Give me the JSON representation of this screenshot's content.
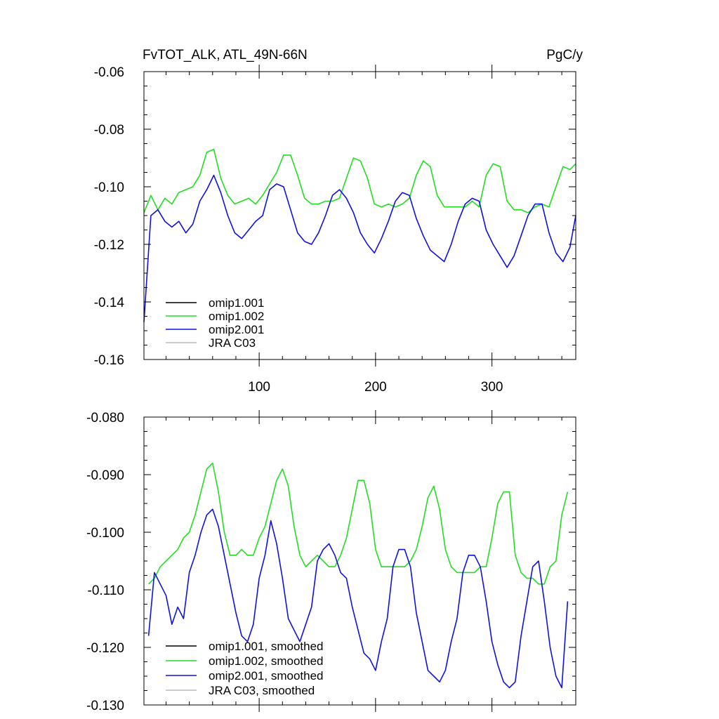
{
  "header": {
    "left_title": "FvTOT_ALK, ATL_49N-66N",
    "right_title": "PgC/y"
  },
  "colors": {
    "omip1_001": "#000000",
    "omip1_002": "#22dd22",
    "omip2_001": "#1111dd",
    "jra_c03": "#bbbbbb"
  },
  "chart_data": [
    {
      "type": "line",
      "title": "",
      "xlabel": "",
      "ylabel": "",
      "xlim": [
        1,
        372
      ],
      "ylim": [
        -0.16,
        -0.06
      ],
      "x_ticks": [
        100,
        200,
        300
      ],
      "x_tick_labels": [
        "100",
        "200",
        "300"
      ],
      "y_ticks": [
        -0.06,
        -0.08,
        -0.1,
        -0.12,
        -0.14,
        -0.16
      ],
      "y_tick_labels": [
        "-0.06",
        "-0.08",
        "-0.10",
        "-0.12",
        "-0.14",
        "-0.16"
      ],
      "grid": false,
      "legend_placement": "bottom-left",
      "legend": [
        {
          "name": "omip1.001",
          "color": "#000000"
        },
        {
          "name": "omip1.002",
          "color": "#22dd22"
        },
        {
          "name": "omip2.001",
          "color": "#1111dd"
        },
        {
          "name": "JRA C03",
          "color": "#bbbbbb"
        }
      ],
      "series": [
        {
          "name": "omip1.002",
          "color": "#22dd22",
          "x": [
            1,
            7,
            13,
            19,
            25,
            31,
            37,
            43,
            49,
            55,
            61,
            67,
            73,
            79,
            85,
            91,
            97,
            103,
            109,
            115,
            121,
            127,
            133,
            139,
            145,
            151,
            157,
            163,
            169,
            175,
            181,
            187,
            193,
            199,
            205,
            211,
            217,
            223,
            229,
            235,
            241,
            247,
            253,
            259,
            265,
            271,
            277,
            283,
            289,
            295,
            301,
            307,
            313,
            319,
            325,
            331,
            337,
            343,
            349,
            355,
            361,
            367,
            372
          ],
          "y": [
            -0.109,
            -0.103,
            -0.108,
            -0.104,
            -0.106,
            -0.102,
            -0.101,
            -0.1,
            -0.096,
            -0.088,
            -0.087,
            -0.097,
            -0.103,
            -0.106,
            -0.105,
            -0.104,
            -0.106,
            -0.103,
            -0.099,
            -0.095,
            -0.089,
            -0.089,
            -0.096,
            -0.104,
            -0.106,
            -0.106,
            -0.105,
            -0.105,
            -0.104,
            -0.097,
            -0.09,
            -0.091,
            -0.097,
            -0.106,
            -0.107,
            -0.106,
            -0.107,
            -0.106,
            -0.104,
            -0.096,
            -0.091,
            -0.093,
            -0.103,
            -0.107,
            -0.107,
            -0.107,
            -0.107,
            -0.105,
            -0.107,
            -0.096,
            -0.092,
            -0.093,
            -0.105,
            -0.108,
            -0.108,
            -0.109,
            -0.107,
            -0.106,
            -0.107,
            -0.1,
            -0.093,
            -0.094,
            -0.092
          ]
        },
        {
          "name": "omip2.001",
          "color": "#1111dd",
          "x": [
            1,
            7,
            13,
            19,
            25,
            31,
            37,
            43,
            49,
            55,
            61,
            67,
            73,
            79,
            85,
            91,
            97,
            103,
            109,
            115,
            121,
            127,
            133,
            139,
            145,
            151,
            157,
            163,
            169,
            175,
            181,
            187,
            193,
            199,
            205,
            211,
            217,
            223,
            229,
            235,
            241,
            247,
            253,
            259,
            265,
            271,
            277,
            283,
            289,
            295,
            301,
            307,
            313,
            319,
            325,
            331,
            337,
            343,
            349,
            355,
            361,
            367,
            372
          ],
          "y": [
            -0.147,
            -0.11,
            -0.108,
            -0.112,
            -0.114,
            -0.112,
            -0.116,
            -0.113,
            -0.105,
            -0.101,
            -0.096,
            -0.102,
            -0.11,
            -0.116,
            -0.118,
            -0.115,
            -0.112,
            -0.11,
            -0.101,
            -0.099,
            -0.1,
            -0.108,
            -0.116,
            -0.119,
            -0.12,
            -0.116,
            -0.11,
            -0.103,
            -0.101,
            -0.104,
            -0.109,
            -0.116,
            -0.12,
            -0.123,
            -0.118,
            -0.112,
            -0.105,
            -0.102,
            -0.103,
            -0.111,
            -0.117,
            -0.122,
            -0.124,
            -0.126,
            -0.12,
            -0.112,
            -0.106,
            -0.104,
            -0.105,
            -0.115,
            -0.12,
            -0.124,
            -0.128,
            -0.124,
            -0.117,
            -0.11,
            -0.106,
            -0.106,
            -0.116,
            -0.123,
            -0.126,
            -0.121,
            -0.11
          ]
        }
      ]
    },
    {
      "type": "line",
      "title": "",
      "xlabel": "",
      "ylabel": "",
      "xlim": [
        1,
        372
      ],
      "ylim": [
        -0.13,
        -0.08
      ],
      "x_ticks": [
        100,
        200,
        300
      ],
      "x_tick_labels": [
        "",
        "",
        ""
      ],
      "y_ticks": [
        -0.08,
        -0.09,
        -0.1,
        -0.11,
        -0.12,
        -0.13
      ],
      "y_tick_labels": [
        "-0.080",
        "-0.090",
        "-0.100",
        "-0.110",
        "-0.120",
        "-0.130"
      ],
      "grid": false,
      "legend_placement": "bottom-left",
      "legend": [
        {
          "name": "omip1.001, smoothed",
          "color": "#000000"
        },
        {
          "name": "omip1.002, smoothed",
          "color": "#22dd22"
        },
        {
          "name": "omip2.001, smoothed",
          "color": "#1111dd"
        },
        {
          "name": "JRA C03, smoothed",
          "color": "#bbbbbb"
        }
      ],
      "series": [
        {
          "name": "omip1.002, smoothed",
          "color": "#22dd22",
          "x": [
            5,
            10,
            15,
            20,
            25,
            30,
            35,
            40,
            45,
            50,
            55,
            60,
            65,
            70,
            75,
            80,
            85,
            90,
            95,
            100,
            105,
            110,
            115,
            120,
            125,
            130,
            135,
            140,
            145,
            150,
            155,
            160,
            165,
            170,
            175,
            180,
            185,
            190,
            195,
            200,
            205,
            210,
            215,
            220,
            225,
            230,
            235,
            240,
            245,
            250,
            255,
            260,
            265,
            270,
            275,
            280,
            285,
            290,
            295,
            300,
            305,
            310,
            315,
            320,
            325,
            330,
            335,
            340,
            345,
            350,
            355,
            360,
            365
          ],
          "y": [
            -0.109,
            -0.108,
            -0.106,
            -0.105,
            -0.104,
            -0.103,
            -0.101,
            -0.1,
            -0.097,
            -0.093,
            -0.089,
            -0.088,
            -0.093,
            -0.1,
            -0.104,
            -0.104,
            -0.103,
            -0.104,
            -0.104,
            -0.101,
            -0.099,
            -0.095,
            -0.091,
            -0.089,
            -0.092,
            -0.099,
            -0.104,
            -0.106,
            -0.105,
            -0.104,
            -0.105,
            -0.106,
            -0.106,
            -0.104,
            -0.101,
            -0.096,
            -0.091,
            -0.091,
            -0.095,
            -0.103,
            -0.106,
            -0.106,
            -0.106,
            -0.106,
            -0.106,
            -0.105,
            -0.103,
            -0.099,
            -0.094,
            -0.092,
            -0.096,
            -0.103,
            -0.106,
            -0.107,
            -0.107,
            -0.107,
            -0.107,
            -0.106,
            -0.106,
            -0.101,
            -0.095,
            -0.093,
            -0.093,
            -0.104,
            -0.107,
            -0.108,
            -0.108,
            -0.109,
            -0.109,
            -0.106,
            -0.105,
            -0.097,
            -0.093
          ]
        },
        {
          "name": "omip2.001, smoothed",
          "color": "#1111dd",
          "x": [
            5,
            10,
            15,
            20,
            25,
            30,
            35,
            40,
            45,
            50,
            55,
            60,
            65,
            70,
            75,
            80,
            85,
            90,
            95,
            100,
            105,
            110,
            115,
            120,
            125,
            130,
            135,
            140,
            145,
            150,
            155,
            160,
            165,
            170,
            175,
            180,
            185,
            190,
            195,
            200,
            205,
            210,
            215,
            220,
            225,
            230,
            235,
            240,
            245,
            250,
            255,
            260,
            265,
            270,
            275,
            280,
            285,
            290,
            295,
            300,
            305,
            310,
            315,
            320,
            325,
            330,
            335,
            340,
            345,
            350,
            355,
            360,
            365
          ],
          "y": [
            -0.118,
            -0.107,
            -0.109,
            -0.111,
            -0.116,
            -0.113,
            -0.115,
            -0.107,
            -0.104,
            -0.1,
            -0.097,
            -0.096,
            -0.099,
            -0.104,
            -0.109,
            -0.114,
            -0.118,
            -0.119,
            -0.116,
            -0.108,
            -0.104,
            -0.098,
            -0.102,
            -0.108,
            -0.115,
            -0.117,
            -0.119,
            -0.116,
            -0.113,
            -0.105,
            -0.103,
            -0.102,
            -0.104,
            -0.107,
            -0.108,
            -0.113,
            -0.117,
            -0.121,
            -0.122,
            -0.124,
            -0.119,
            -0.115,
            -0.106,
            -0.103,
            -0.103,
            -0.106,
            -0.114,
            -0.119,
            -0.124,
            -0.125,
            -0.126,
            -0.124,
            -0.119,
            -0.115,
            -0.107,
            -0.104,
            -0.104,
            -0.106,
            -0.112,
            -0.119,
            -0.123,
            -0.126,
            -0.127,
            -0.126,
            -0.118,
            -0.112,
            -0.106,
            -0.105,
            -0.112,
            -0.12,
            -0.125,
            -0.127,
            -0.112
          ]
        }
      ]
    }
  ]
}
